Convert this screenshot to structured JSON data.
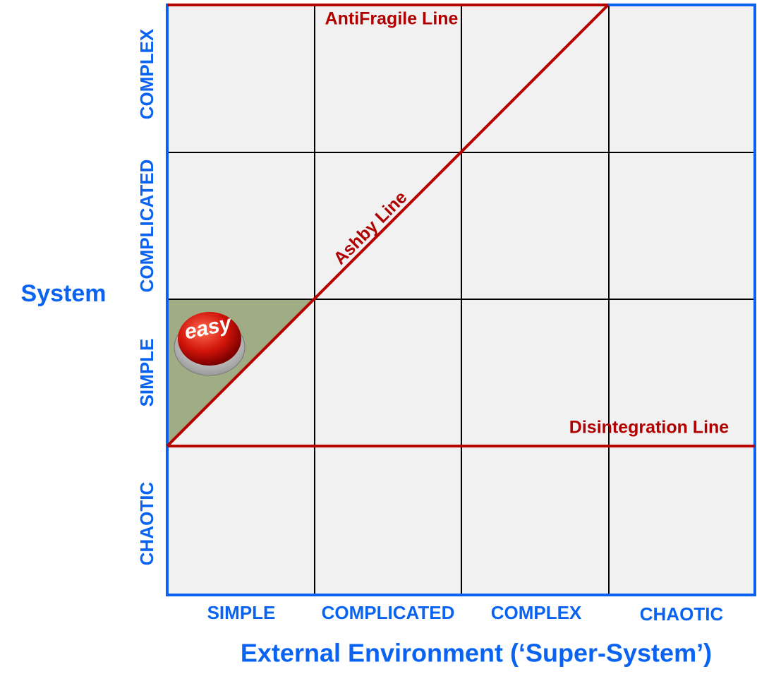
{
  "axes": {
    "y_title": "System",
    "x_title": "External Environment (‘Super-System’)",
    "rows": [
      "COMPLEX",
      "COMPLICATED",
      "SIMPLE",
      "CHAOTIC"
    ],
    "columns": [
      "SIMPLE",
      "COMPLICATED",
      "COMPLEX",
      "CHAOTIC"
    ]
  },
  "lines": {
    "antifragile": "AntiFragile Line",
    "ashby": "Ashby Line",
    "disintegration": "Disintegration Line"
  },
  "button": {
    "label": "easy"
  }
}
